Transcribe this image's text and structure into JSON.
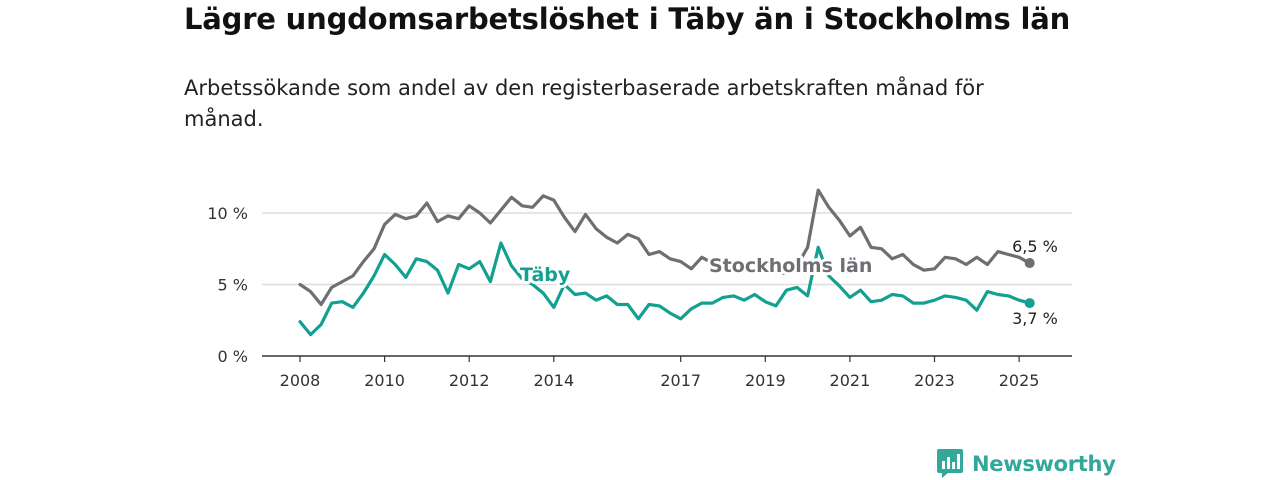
{
  "title": "Lägre ungdomsarbetslöshet i Täby än i Stockholms län",
  "subtitle": "Arbetssökande som andel av den registerbaserade arbetskraften månad för månad.",
  "brand": {
    "name": "Newsworthy",
    "color": "#31a89a"
  },
  "colors": {
    "taby": "#12a091",
    "stockholm": "#6e6e73",
    "grid": "#dddddd",
    "axis": "#333333"
  },
  "chart_data": {
    "type": "line",
    "title": "Lägre ungdomsarbetslöshet i Täby än i Stockholms län",
    "subtitle": "Arbetssökande som andel av den registerbaserade arbetskraften månad för månad.",
    "xlabel": "",
    "ylabel": "",
    "x_ticks": [
      "2008",
      "2010",
      "2012",
      "2014",
      "2017",
      "2019",
      "2021",
      "2023",
      "2025"
    ],
    "y_ticks": [
      "0 %",
      "5 %",
      "10 %"
    ],
    "y_tick_values": [
      0,
      5,
      10
    ],
    "ylim": [
      0,
      10.7
    ],
    "xlim": [
      "2008-01",
      "2025-05"
    ],
    "grid": true,
    "legend": "inline labels",
    "series": [
      {
        "name": "Stockholms län",
        "label": "Stockholms län",
        "end_label": "6,5 %",
        "points": [
          [
            "2008-01",
            5.0
          ],
          [
            "2008-04",
            4.5
          ],
          [
            "2008-07",
            3.6
          ],
          [
            "2008-10",
            4.8
          ],
          [
            "2009-01",
            5.2
          ],
          [
            "2009-04",
            5.6
          ],
          [
            "2009-07",
            6.6
          ],
          [
            "2009-10",
            7.5
          ],
          [
            "2010-01",
            9.2
          ],
          [
            "2010-04",
            9.9
          ],
          [
            "2010-07",
            9.6
          ],
          [
            "2010-10",
            9.8
          ],
          [
            "2011-01",
            10.7
          ],
          [
            "2011-04",
            9.4
          ],
          [
            "2011-07",
            9.8
          ],
          [
            "2011-10",
            9.6
          ],
          [
            "2012-01",
            10.5
          ],
          [
            "2012-04",
            10.0
          ],
          [
            "2012-07",
            9.3
          ],
          [
            "2012-10",
            10.2
          ],
          [
            "2013-01",
            11.1
          ],
          [
            "2013-04",
            10.5
          ],
          [
            "2013-07",
            10.4
          ],
          [
            "2013-10",
            11.2
          ],
          [
            "2014-01",
            10.9
          ],
          [
            "2014-04",
            9.7
          ],
          [
            "2014-07",
            8.7
          ],
          [
            "2014-10",
            9.9
          ],
          [
            "2015-01",
            8.9
          ],
          [
            "2015-04",
            8.3
          ],
          [
            "2015-07",
            7.9
          ],
          [
            "2015-10",
            8.5
          ],
          [
            "2016-01",
            8.2
          ],
          [
            "2016-04",
            7.1
          ],
          [
            "2016-07",
            7.3
          ],
          [
            "2016-10",
            6.8
          ],
          [
            "2017-01",
            6.6
          ],
          [
            "2017-04",
            6.1
          ],
          [
            "2017-07",
            6.9
          ],
          [
            "2017-10",
            6.5
          ],
          [
            "2018-01",
            6.6
          ],
          [
            "2018-04",
            6.0
          ],
          [
            "2018-07",
            6.0
          ],
          [
            "2018-10",
            5.9
          ],
          [
            "2019-01",
            6.1
          ],
          [
            "2019-04",
            5.8
          ],
          [
            "2019-07",
            5.8
          ],
          [
            "2019-10",
            6.3
          ],
          [
            "2020-01",
            7.6
          ],
          [
            "2020-04",
            11.6
          ],
          [
            "2020-07",
            10.4
          ],
          [
            "2020-10",
            9.5
          ],
          [
            "2021-01",
            8.4
          ],
          [
            "2021-04",
            9.0
          ],
          [
            "2021-07",
            7.6
          ],
          [
            "2021-10",
            7.5
          ],
          [
            "2022-01",
            6.8
          ],
          [
            "2022-04",
            7.1
          ],
          [
            "2022-07",
            6.4
          ],
          [
            "2022-10",
            6.0
          ],
          [
            "2023-01",
            6.1
          ],
          [
            "2023-04",
            6.9
          ],
          [
            "2023-07",
            6.8
          ],
          [
            "2023-10",
            6.4
          ],
          [
            "2024-01",
            6.9
          ],
          [
            "2024-04",
            6.4
          ],
          [
            "2024-07",
            7.3
          ],
          [
            "2024-10",
            7.1
          ],
          [
            "2025-01",
            6.9
          ],
          [
            "2025-04",
            6.5
          ]
        ]
      },
      {
        "name": "Täby",
        "label": "Täby",
        "end_label": "3,7 %",
        "points": [
          [
            "2008-01",
            2.4
          ],
          [
            "2008-04",
            1.5
          ],
          [
            "2008-07",
            2.2
          ],
          [
            "2008-10",
            3.7
          ],
          [
            "2009-01",
            3.8
          ],
          [
            "2009-04",
            3.4
          ],
          [
            "2009-07",
            4.4
          ],
          [
            "2009-10",
            5.6
          ],
          [
            "2010-01",
            7.1
          ],
          [
            "2010-04",
            6.4
          ],
          [
            "2010-07",
            5.5
          ],
          [
            "2010-10",
            6.8
          ],
          [
            "2011-01",
            6.6
          ],
          [
            "2011-04",
            6.0
          ],
          [
            "2011-07",
            4.4
          ],
          [
            "2011-10",
            6.4
          ],
          [
            "2012-01",
            6.1
          ],
          [
            "2012-04",
            6.6
          ],
          [
            "2012-07",
            5.2
          ],
          [
            "2012-10",
            7.9
          ],
          [
            "2013-01",
            6.3
          ],
          [
            "2013-04",
            5.4
          ],
          [
            "2013-07",
            5.0
          ],
          [
            "2013-10",
            4.4
          ],
          [
            "2014-01",
            3.4
          ],
          [
            "2014-04",
            5.0
          ],
          [
            "2014-07",
            4.3
          ],
          [
            "2014-10",
            4.4
          ],
          [
            "2015-01",
            3.9
          ],
          [
            "2015-04",
            4.2
          ],
          [
            "2015-07",
            3.6
          ],
          [
            "2015-10",
            3.6
          ],
          [
            "2016-01",
            2.6
          ],
          [
            "2016-04",
            3.6
          ],
          [
            "2016-07",
            3.5
          ],
          [
            "2016-10",
            3.0
          ],
          [
            "2017-01",
            2.6
          ],
          [
            "2017-04",
            3.3
          ],
          [
            "2017-07",
            3.7
          ],
          [
            "2017-10",
            3.7
          ],
          [
            "2018-01",
            4.1
          ],
          [
            "2018-04",
            4.2
          ],
          [
            "2018-07",
            3.9
          ],
          [
            "2018-10",
            4.3
          ],
          [
            "2019-01",
            3.8
          ],
          [
            "2019-04",
            3.5
          ],
          [
            "2019-07",
            4.6
          ],
          [
            "2019-10",
            4.8
          ],
          [
            "2020-01",
            4.2
          ],
          [
            "2020-04",
            7.6
          ],
          [
            "2020-07",
            5.6
          ],
          [
            "2020-10",
            4.9
          ],
          [
            "2021-01",
            4.1
          ],
          [
            "2021-04",
            4.6
          ],
          [
            "2021-07",
            3.8
          ],
          [
            "2021-10",
            3.9
          ],
          [
            "2022-01",
            4.3
          ],
          [
            "2022-04",
            4.2
          ],
          [
            "2022-07",
            3.7
          ],
          [
            "2022-10",
            3.7
          ],
          [
            "2023-01",
            3.9
          ],
          [
            "2023-04",
            4.2
          ],
          [
            "2023-07",
            4.1
          ],
          [
            "2023-10",
            3.9
          ],
          [
            "2024-01",
            3.2
          ],
          [
            "2024-04",
            4.5
          ],
          [
            "2024-07",
            4.3
          ],
          [
            "2024-10",
            4.2
          ],
          [
            "2025-01",
            3.9
          ],
          [
            "2025-04",
            3.7
          ]
        ]
      }
    ]
  }
}
